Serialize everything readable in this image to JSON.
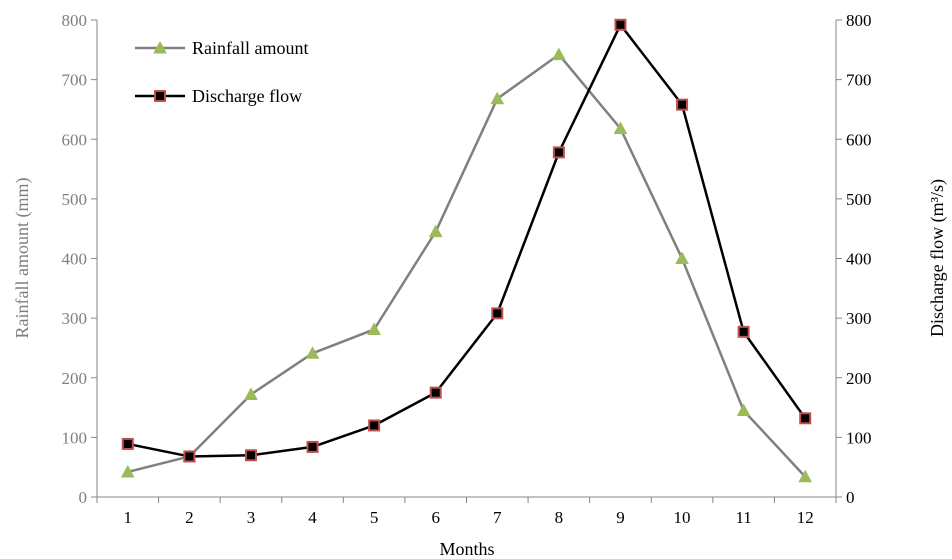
{
  "chart_data": {
    "type": "line",
    "x": [
      1,
      2,
      3,
      4,
      5,
      6,
      7,
      8,
      9,
      10,
      11,
      12
    ],
    "xlabel": "Months",
    "ylabel_left": "Rainfall amount (mm)",
    "ylabel_right": "Discharge flow (m³/s)",
    "ylim_left": [
      0,
      800
    ],
    "ylim_right": [
      0,
      800
    ],
    "yticks": [
      0,
      100,
      200,
      300,
      400,
      500,
      600,
      700,
      800
    ],
    "grid": false,
    "legend": "top-left",
    "series": [
      {
        "name": "Rainfall amount",
        "axis": "left",
        "values": [
          42,
          68,
          172,
          241,
          281,
          445,
          668,
          742,
          618,
          400,
          145,
          34
        ],
        "line_color": "#808080",
        "marker": "triangle",
        "marker_fill": "#9bbb59"
      },
      {
        "name": "Discharge flow",
        "axis": "right",
        "values": [
          89,
          68,
          70,
          84,
          120,
          175,
          308,
          578,
          792,
          658,
          277,
          132
        ],
        "line_color": "#000000",
        "marker": "square",
        "marker_fill": "#000000",
        "marker_edge": "#c0504d"
      }
    ]
  }
}
